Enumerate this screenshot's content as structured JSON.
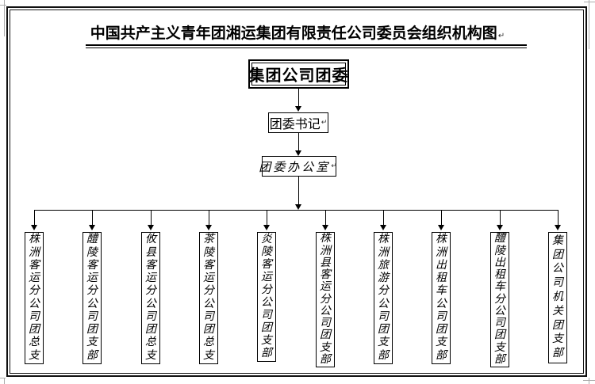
{
  "window": {
    "background": "#ffffff"
  },
  "colors": {
    "line": "#000000",
    "artifact": "#ababab"
  },
  "title": {
    "text": "中国共产主义青年团湘运集团有限责任公司委员会组织机构图",
    "paragraph_mark": "↵"
  },
  "org": {
    "root": {
      "label": "集团公司团委"
    },
    "secretary": {
      "label": "团委书记",
      "paragraph_mark": "↵"
    },
    "office": {
      "label": "团委办公室",
      "paragraph_mark": "↵"
    },
    "branches": [
      {
        "label": "株洲客运分公司团总支"
      },
      {
        "label": "醴陵客运分公司团支部"
      },
      {
        "label": "攸县客运分公司团总支"
      },
      {
        "label": "茶陵客运分公司团总支"
      },
      {
        "label": "炎陵客运分公司团支部"
      },
      {
        "label": "株洲县客运分公司团支部"
      },
      {
        "label": "株洲旅游分公司团支部"
      },
      {
        "label": "株洲出租车公司团支部"
      },
      {
        "label": "醴陵出租车分公司团支部"
      },
      {
        "label": "集团公司机关团支部"
      }
    ]
  }
}
